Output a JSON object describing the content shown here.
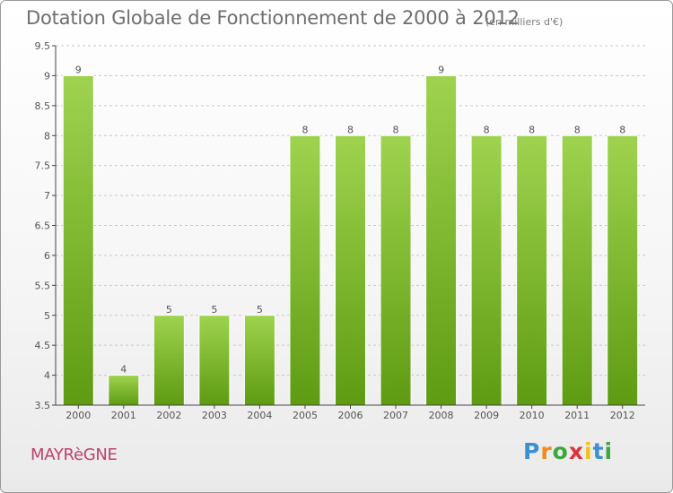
{
  "title": "Dotation Globale de Fonctionnement de 2000 à 2012",
  "subtitle": "(en milliers d'€)",
  "commune": "MAYRèGNE",
  "logo": [
    "P",
    "r",
    "o",
    "x",
    "i",
    "t",
    "i"
  ],
  "colors": {
    "bar_top": "#9fd34f",
    "bar_bottom": "#5e9b12",
    "grid": "#c8c8c8",
    "axis": "#444444",
    "commune": "#c0416a"
  },
  "chart_data": {
    "type": "bar",
    "categories": [
      "2000",
      "2001",
      "2002",
      "2003",
      "2004",
      "2005",
      "2006",
      "2007",
      "2008",
      "2009",
      "2010",
      "2011",
      "2012"
    ],
    "values": [
      9,
      4,
      5,
      5,
      5,
      8,
      8,
      8,
      9,
      8,
      8,
      8,
      8
    ],
    "data_labels": [
      "9",
      "4",
      "5",
      "5",
      "5",
      "8",
      "8",
      "8",
      "9",
      "8",
      "8",
      "8",
      "8"
    ],
    "ylim": [
      3.5,
      9.5
    ],
    "yticks": [
      3.5,
      4,
      4.5,
      5,
      5.5,
      6,
      6.5,
      7,
      7.5,
      8,
      8.5,
      9,
      9.5
    ],
    "ytick_labels": [
      "3.5",
      "4",
      "4.5",
      "5",
      "5.5",
      "6",
      "6.5",
      "7",
      "7.5",
      "8",
      "8.5",
      "9",
      "9.5"
    ],
    "grid": true,
    "legend": "none"
  }
}
